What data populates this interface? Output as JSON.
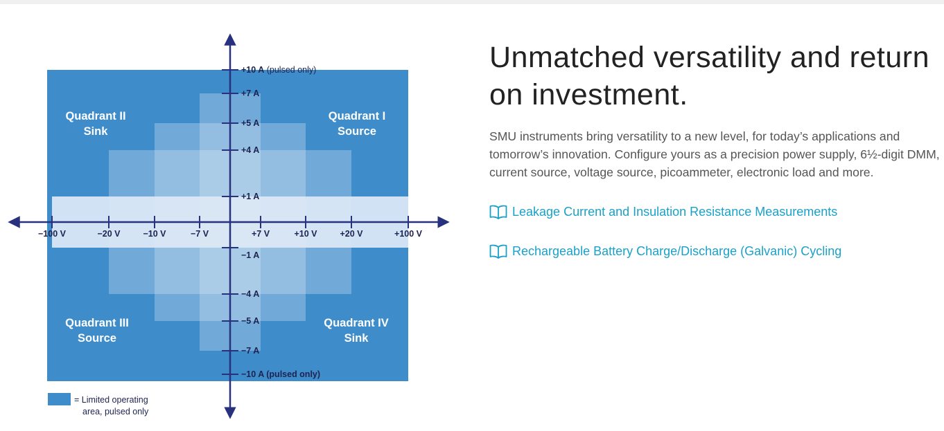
{
  "header": {
    "title": "Unmatched versatility and return on investment.",
    "body": "SMU instruments bring versatility to a new level, for today’s applications and tomorrow’s innovation. Configure yours as a precision power supply, 6½-digit DMM, current source, voltage source, picoammeter, electronic load and more."
  },
  "links": [
    {
      "label": "Leakage Current and Insulation Resistance Measurements",
      "icon": "book-icon"
    },
    {
      "label": "Rechargeable Battery Charge/Discharge (Galvanic) Cycling",
      "icon": "book-icon"
    }
  ],
  "colors": {
    "pulsed_area": "#3f8ccb",
    "dc_area": "#dce9f6",
    "axis": "#27317d",
    "link": "#1aa1c9"
  },
  "chart_data": {
    "type": "area",
    "title": "",
    "quadrants": [
      {
        "name": "Quadrant I",
        "mode": "Source"
      },
      {
        "name": "Quadrant II",
        "mode": "Sink"
      },
      {
        "name": "Quadrant III",
        "mode": "Source"
      },
      {
        "name": "Quadrant IV",
        "mode": "Sink"
      }
    ],
    "x_ticks": [
      "−100 V",
      "−20 V",
      "−10 V",
      "−7 V",
      "+7 V",
      "+10 V",
      "+20 V",
      "+100 V"
    ],
    "y_ticks": [
      {
        "value": "+10 A",
        "note": "(pulsed only)"
      },
      {
        "value": "+7 A"
      },
      {
        "value": "+5 A"
      },
      {
        "value": "+4 A"
      },
      {
        "value": "+1 A"
      },
      {
        "value": "−1 A"
      },
      {
        "value": "−4 A"
      },
      {
        "value": "−5 A"
      },
      {
        "value": "−7 A"
      },
      {
        "value": "−10 A",
        "note": "(pulsed only)"
      }
    ],
    "operating_regions": [
      {
        "voltage_V": 100,
        "current_A": 1
      },
      {
        "voltage_V": 20,
        "current_A": 4
      },
      {
        "voltage_V": 10,
        "current_A": 5
      },
      {
        "voltage_V": 7,
        "current_A": 7
      }
    ],
    "pulsed_region": {
      "voltage_V": 100,
      "current_A": 10
    },
    "legend": {
      "label_line1": "= Limited operating",
      "label_line2": "area, pulsed only"
    }
  }
}
